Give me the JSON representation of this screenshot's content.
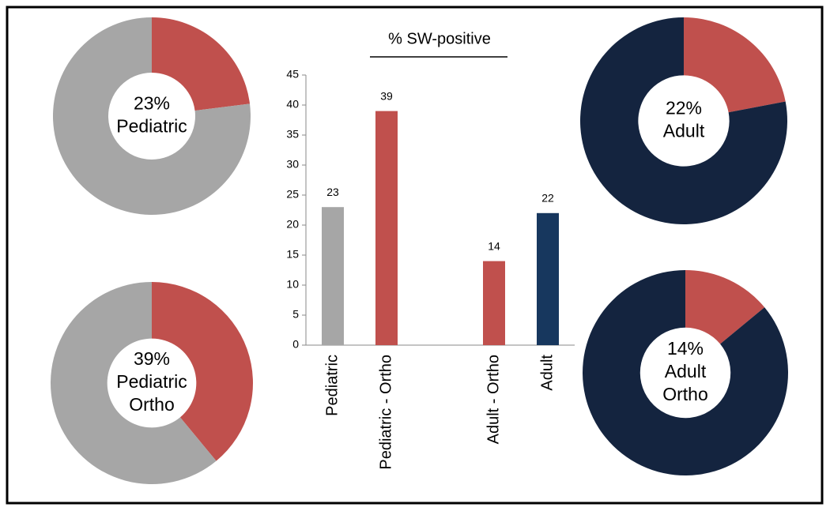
{
  "chart_data": [
    {
      "type": "bar",
      "title": "% SW-positive",
      "categories": [
        "Pediatric",
        "Pediatric - Ortho",
        null,
        "Adult - Ortho",
        "Adult"
      ],
      "values": [
        23,
        39,
        null,
        14,
        22
      ],
      "colors": [
        "#a6a6a6",
        "#c0504d",
        null,
        "#c0504d",
        "#17375e"
      ],
      "ylim": [
        0,
        45
      ],
      "yticks": [
        0,
        5,
        10,
        15,
        20,
        25,
        30,
        35,
        40,
        45
      ],
      "grid": false
    },
    {
      "type": "donut",
      "values": [
        23,
        77
      ],
      "colors": [
        "#c0504d",
        "#a6a6a6"
      ],
      "value_labels": [
        "23%",
        null
      ],
      "center_lines": [
        "Pediatric"
      ]
    },
    {
      "type": "donut",
      "values": [
        39,
        61
      ],
      "colors": [
        "#c0504d",
        "#a6a6a6"
      ],
      "value_labels": [
        "39%",
        null
      ],
      "center_lines": [
        "Pediatric",
        "Ortho"
      ]
    },
    {
      "type": "donut",
      "values": [
        22,
        78
      ],
      "colors": [
        "#c0504d",
        "#14243f"
      ],
      "value_labels": [
        "22%",
        null
      ],
      "center_lines": [
        "Adult"
      ]
    },
    {
      "type": "donut",
      "values": [
        14,
        86
      ],
      "colors": [
        "#c0504d",
        "#14243f"
      ],
      "value_labels": [
        "14%",
        null
      ],
      "center_lines": [
        "Adult",
        "Ortho"
      ]
    }
  ]
}
